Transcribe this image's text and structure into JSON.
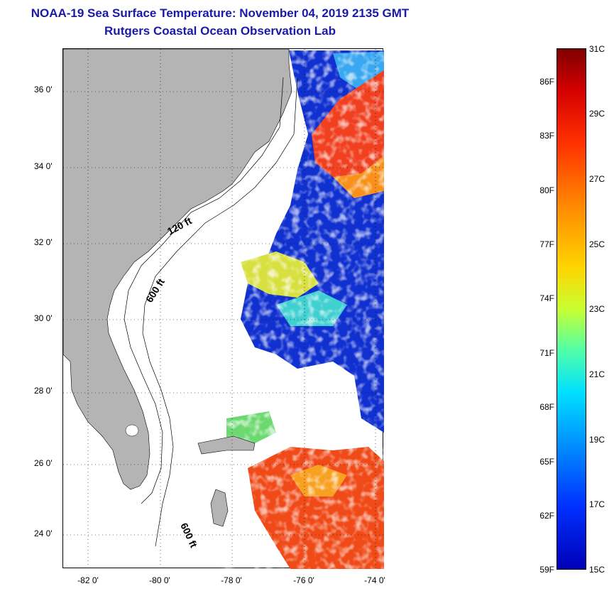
{
  "title": {
    "line1": "NOAA-19 Sea Surface Temperature:  November 04, 2019 2135 GMT",
    "line2": "Rutgers Coastal Ocean Observation Lab"
  },
  "map": {
    "lat_labels": [
      "36 0'",
      "34 0'",
      "32 0'",
      "30 0'",
      "28 0'",
      "26 0'",
      "24 0'"
    ],
    "lon_labels": [
      "-82 0'",
      "-80 0'",
      "-78 0'",
      "-76 0'",
      "-74 0'"
    ],
    "isobath_labels": [
      "120 ft",
      "600 ft",
      "600 ft"
    ],
    "colors": {
      "land": "#b4b4b4",
      "no_data": "#ffffff",
      "grid": "#000000"
    }
  },
  "colorbar": {
    "fahrenheit_labels": [
      "86F",
      "83F",
      "80F",
      "77F",
      "74F",
      "71F",
      "68F",
      "65F",
      "62F",
      "59F"
    ],
    "celsius_labels": [
      "31C",
      "29C",
      "27C",
      "25C",
      "23C",
      "21C",
      "19C",
      "17C",
      "15C"
    ],
    "range_c": [
      15,
      31
    ],
    "colormap": "jet"
  }
}
